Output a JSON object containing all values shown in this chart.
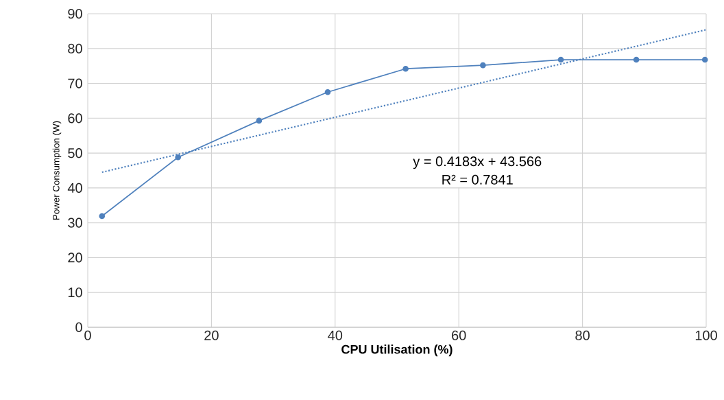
{
  "chart_data": {
    "type": "line",
    "xlabel": "CPU Utilisation (%)",
    "ylabel": "Power Consumption (W)",
    "series": [
      {
        "color": "#4f81bd",
        "x": [
          2.3,
          14.6,
          27.7,
          38.8,
          51.4,
          63.9,
          76.5,
          88.7,
          99.8
        ],
        "values": [
          31.9,
          48.8,
          59.3,
          67.5,
          74.2,
          75.2,
          76.8,
          76.8,
          76.8
        ],
        "marker": "circle",
        "line_style": "solid"
      },
      {
        "color": "#4f81bd",
        "x": [
          2.3,
          100
        ],
        "values": [
          44.5,
          85.4
        ],
        "marker": "none",
        "line_style": "dotted"
      }
    ],
    "annotations": [
      "y = 0.4183x + 43.566",
      "R² = 0.7841"
    ],
    "xlim": [
      0,
      100
    ],
    "xticks": [
      0,
      20,
      40,
      60,
      80,
      100
    ],
    "ylim": [
      0,
      90
    ],
    "yticks": [
      0,
      10,
      20,
      30,
      40,
      50,
      60,
      70,
      80,
      90
    ],
    "grid": true
  }
}
